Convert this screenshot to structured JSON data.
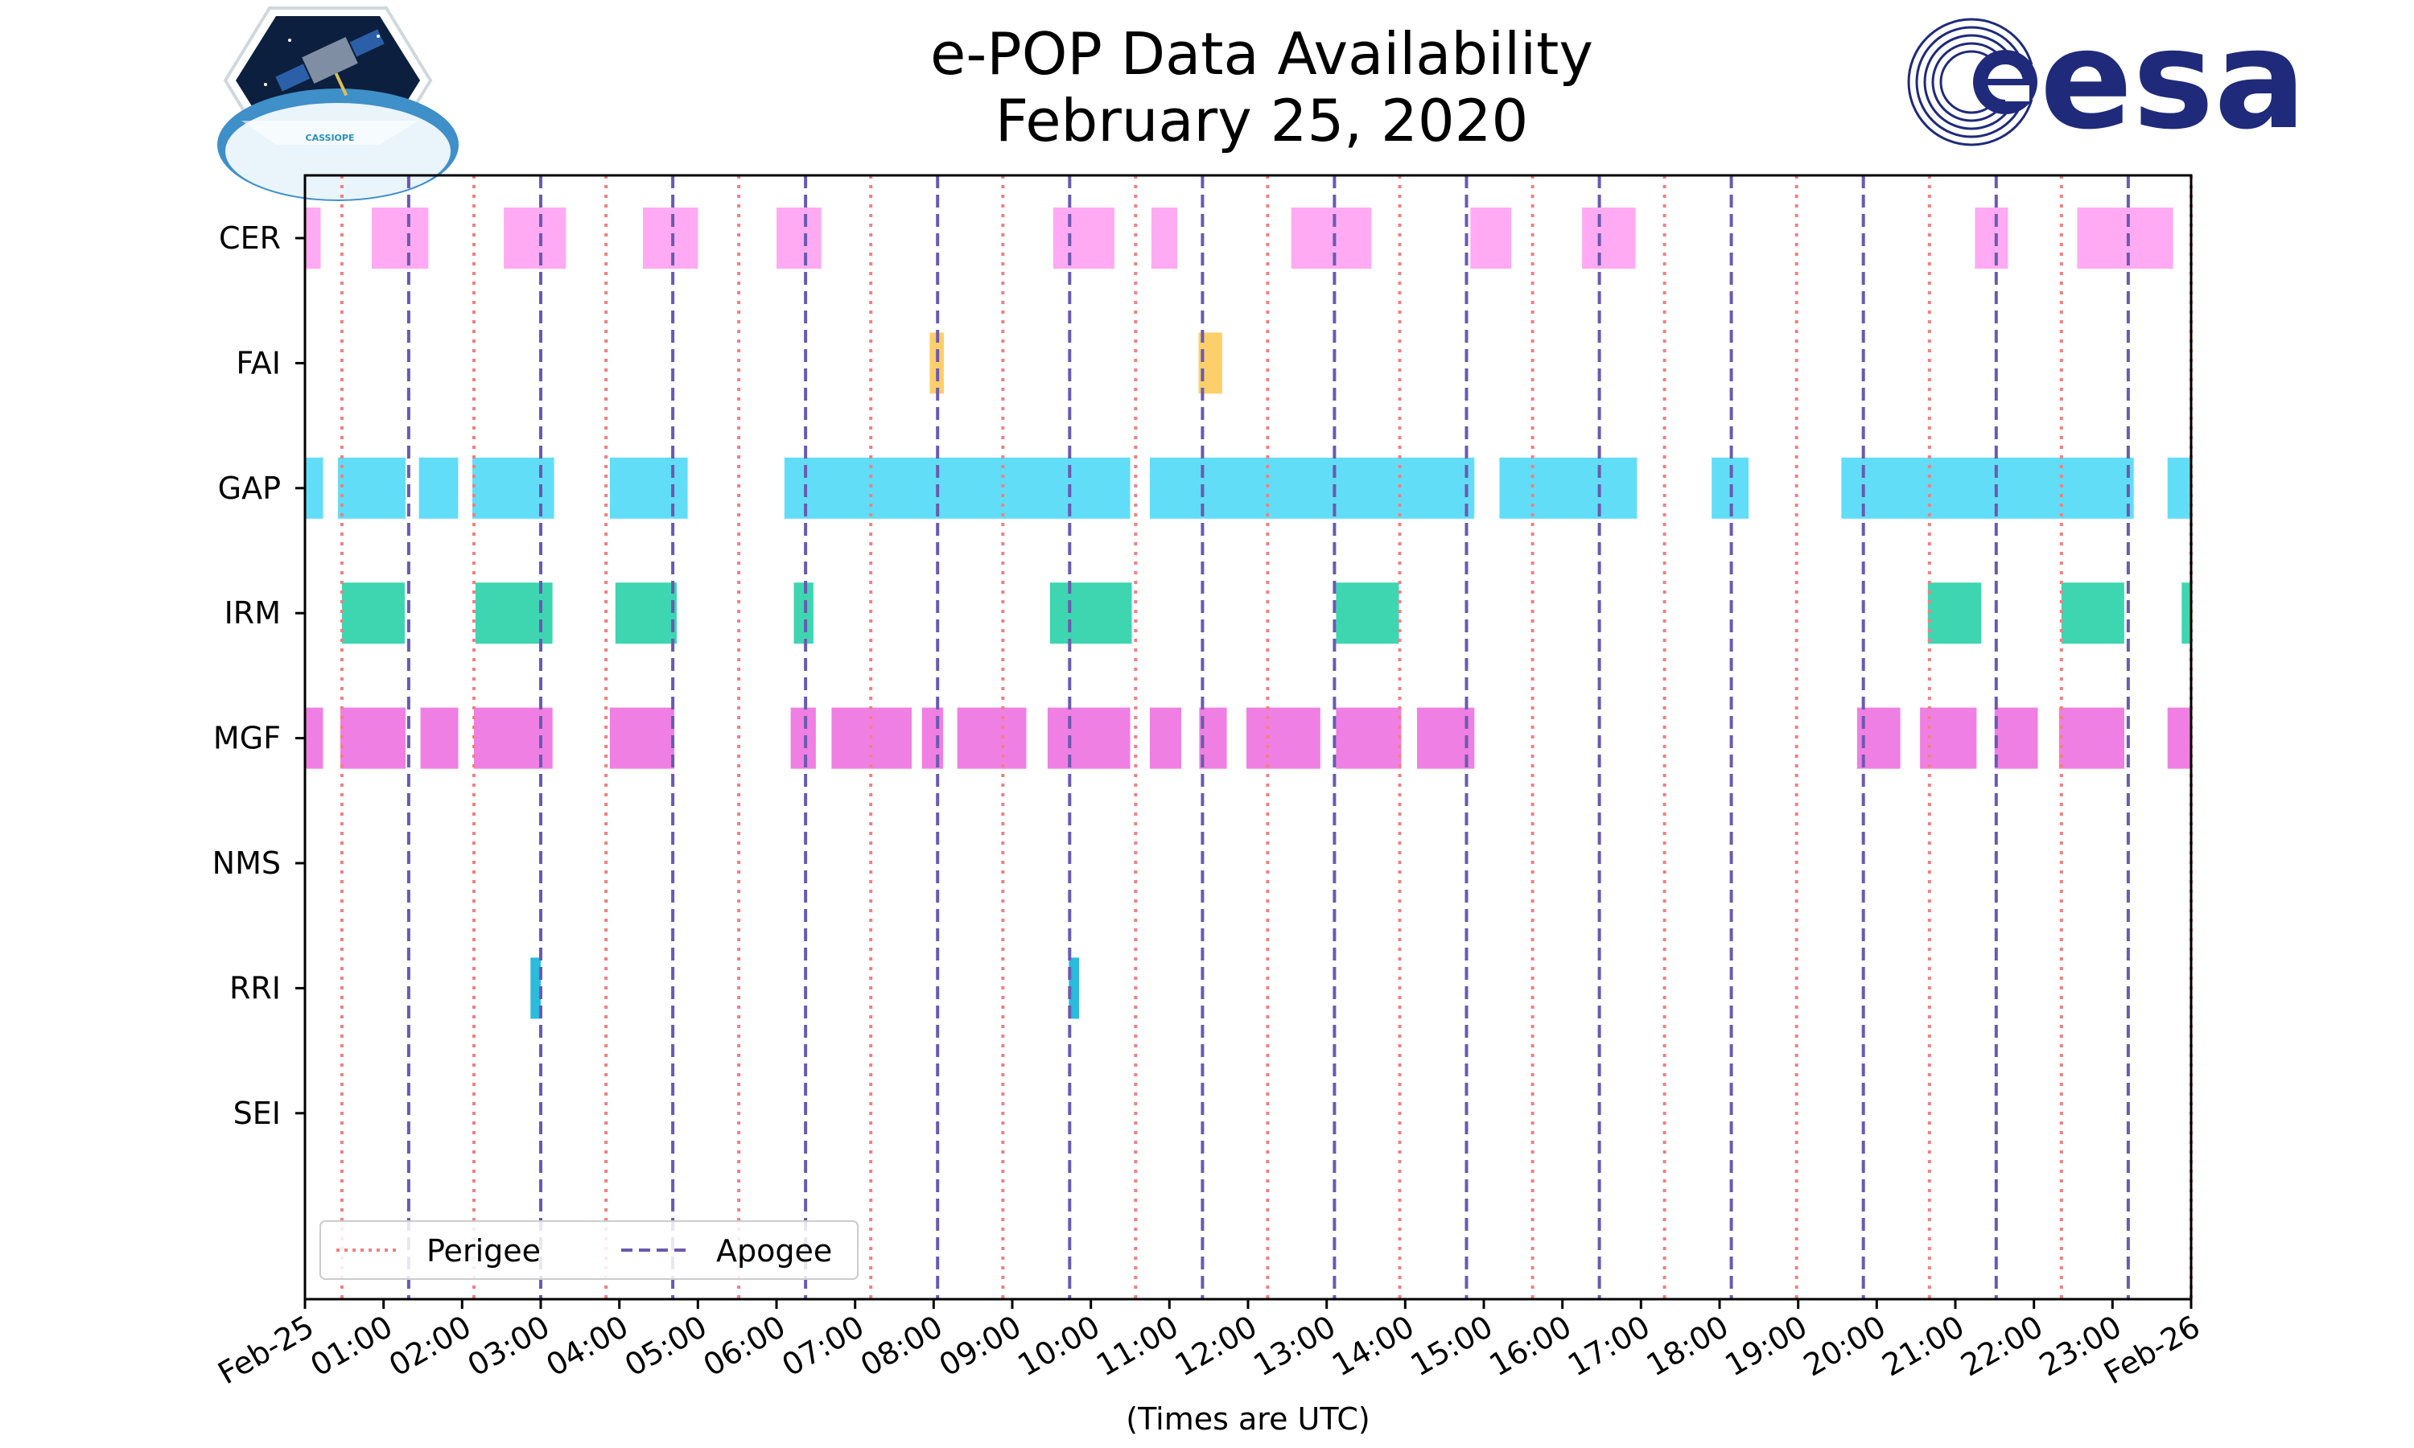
{
  "chart_data": {
    "type": "timeline",
    "title_lines": [
      "e-POP Data Availability",
      "February 25, 2020"
    ],
    "xlabel": "(Times are UTC)",
    "xlim_hours": [
      0,
      24
    ],
    "x_ticks": [
      "Feb-25",
      "01:00",
      "02:00",
      "03:00",
      "04:00",
      "05:00",
      "06:00",
      "07:00",
      "08:00",
      "09:00",
      "10:00",
      "11:00",
      "12:00",
      "13:00",
      "14:00",
      "15:00",
      "16:00",
      "17:00",
      "18:00",
      "19:00",
      "20:00",
      "21:00",
      "22:00",
      "23:00",
      "Feb-26"
    ],
    "instruments": [
      "CER",
      "FAI",
      "GAP",
      "IRM",
      "MGF",
      "NMS",
      "RRI",
      "SEI"
    ],
    "colors": {
      "CER": "#ffaaf2",
      "FAI": "#fdcf6b",
      "GAP": "#62ddf8",
      "IRM": "#3dd6b0",
      "MGF": "#f07fe3",
      "RRI": "#2bbbdd",
      "perigee": "#f08080",
      "apogee": "#6a5ab0"
    },
    "intervals": {
      "CER": [
        [
          0.0,
          0.2
        ],
        [
          0.85,
          1.57
        ],
        [
          2.53,
          3.32
        ],
        [
          4.3,
          5.0
        ],
        [
          6.0,
          6.57
        ],
        [
          9.52,
          10.3
        ],
        [
          10.77,
          11.1
        ],
        [
          12.55,
          13.57
        ],
        [
          14.83,
          15.35
        ],
        [
          16.25,
          16.93
        ],
        [
          21.25,
          21.67
        ],
        [
          22.55,
          23.77
        ]
      ],
      "FAI": [
        [
          7.95,
          8.13
        ],
        [
          11.37,
          11.67
        ]
      ],
      "GAP": [
        [
          0.0,
          0.23
        ],
        [
          0.42,
          1.28
        ],
        [
          1.45,
          1.95
        ],
        [
          2.13,
          3.17
        ],
        [
          3.88,
          4.87
        ],
        [
          6.1,
          10.5
        ],
        [
          10.75,
          14.88
        ],
        [
          15.2,
          16.95
        ],
        [
          17.9,
          18.37
        ],
        [
          19.55,
          23.27
        ],
        [
          23.7,
          24.0
        ]
      ],
      "IRM": [
        [
          0.47,
          1.27
        ],
        [
          2.17,
          3.15
        ],
        [
          3.95,
          4.73
        ],
        [
          6.22,
          6.47
        ],
        [
          9.48,
          10.52
        ],
        [
          13.12,
          13.92
        ],
        [
          20.65,
          21.33
        ],
        [
          22.35,
          23.15
        ],
        [
          23.88,
          24.0
        ]
      ],
      "MGF": [
        [
          0.0,
          0.23
        ],
        [
          0.45,
          1.28
        ],
        [
          1.47,
          1.95
        ],
        [
          2.15,
          3.15
        ],
        [
          3.88,
          4.7
        ],
        [
          6.18,
          6.5
        ],
        [
          6.7,
          7.72
        ],
        [
          7.85,
          8.12
        ],
        [
          8.3,
          9.18
        ],
        [
          9.45,
          10.5
        ],
        [
          10.75,
          11.15
        ],
        [
          11.38,
          11.73
        ],
        [
          11.98,
          12.92
        ],
        [
          13.12,
          13.95
        ],
        [
          14.15,
          14.88
        ],
        [
          19.75,
          20.3
        ],
        [
          20.55,
          21.27
        ],
        [
          21.5,
          22.05
        ],
        [
          22.32,
          23.15
        ],
        [
          23.7,
          24.0
        ]
      ],
      "NMS": [],
      "RRI": [
        [
          2.87,
          3.0
        ],
        [
          9.72,
          9.85
        ]
      ],
      "SEI": []
    },
    "perigee_hours": [
      0.47,
      2.15,
      3.83,
      5.52,
      7.2,
      8.88,
      10.57,
      12.25,
      13.93,
      15.62,
      17.3,
      18.98,
      20.67,
      22.35,
      24.0
    ],
    "apogee_hours": [
      1.32,
      3.0,
      4.68,
      6.37,
      8.05,
      9.73,
      11.42,
      13.1,
      14.78,
      16.47,
      18.15,
      19.83,
      21.52,
      23.2
    ],
    "legend": {
      "location": "lower-left",
      "perigee_label": "Perigee",
      "apogee_label": "Apogee"
    }
  },
  "logos": {
    "left_mission_badge": "CASSIOPE",
    "right_agency": "esa"
  }
}
